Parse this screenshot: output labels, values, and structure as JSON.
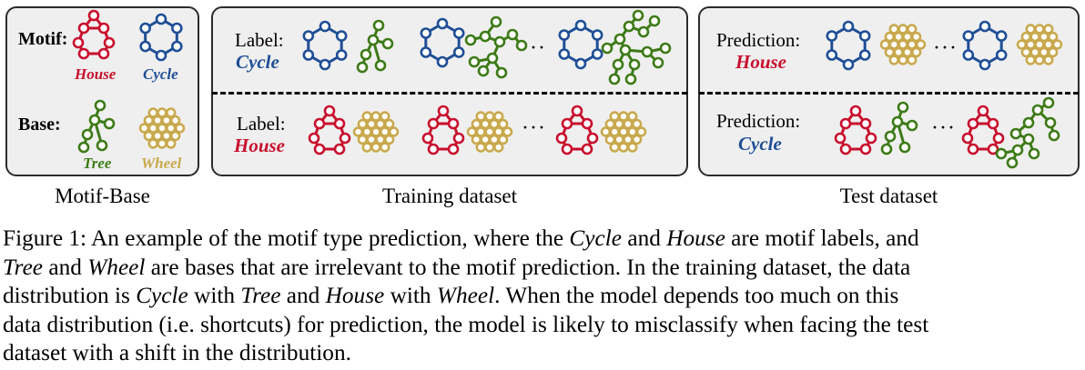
{
  "colors": {
    "house": "#c8102e",
    "cycle": "#1f4e96",
    "tree": "#3d7a17",
    "wheel": "#c9a94e"
  },
  "motif_base_panel": {
    "motif_label": "Motif:",
    "base_label": "Base:",
    "house_label": "House",
    "cycle_label": "Cycle",
    "tree_label": "Tree",
    "wheel_label": "Wheel",
    "caption": "Motif-Base"
  },
  "training_panel": {
    "top_label": "Label:",
    "top_value": "Cycle",
    "bottom_label": "Label:",
    "bottom_value": "House",
    "ellipsis": "···",
    "caption": "Training dataset"
  },
  "test_panel": {
    "top_label": "Prediction:",
    "top_value": "House",
    "bottom_label": "Prediction:",
    "bottom_value": "Cycle",
    "ellipsis": "···",
    "caption": "Test dataset"
  },
  "figure_caption": {
    "l1a": "Figure 1: An example of the motif type prediction, where the ",
    "l1b": "Cycle",
    "l1c": " and ",
    "l1d": "House",
    "l1e": " are motif labels, and",
    "l2a": "Tree",
    "l2b": " and ",
    "l2c": "Wheel",
    "l2d": " are bases that are irrelevant to the motif prediction. In the training dataset, the data",
    "l3a": "distribution is ",
    "l3b": "Cycle",
    "l3c": " with ",
    "l3d": "Tree",
    "l3e": " and ",
    "l3f": "House",
    "l3g": " with ",
    "l3h": "Wheel",
    "l3i": ". When the model depends too much on this",
    "l4": "data distribution (i.e. shortcuts) for prediction, the model is likely to misclassify when facing the test",
    "l5": "dataset with a shift in the distribution."
  }
}
